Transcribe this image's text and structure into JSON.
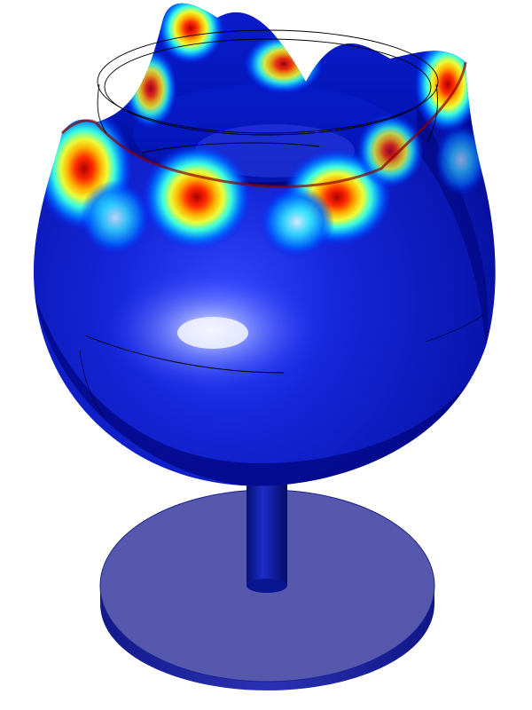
{
  "figure": {
    "subject": "glass-mode-shape",
    "colors": {
      "background": "#ffffff",
      "bowl_deep": "#00007a",
      "bowl_mid": "#0a1fd4",
      "bowl_light": "#6a7cff",
      "highlight": "#e8ecff",
      "base": "#5659ad",
      "base_edge": "#1b1f8c",
      "stem": "#0e1a9a",
      "wire": "#000000",
      "colormap": [
        "#00007a",
        "#0040ff",
        "#00c8ff",
        "#ffffff",
        "#ffd000",
        "#ff3a00",
        "#b80000"
      ]
    }
  }
}
